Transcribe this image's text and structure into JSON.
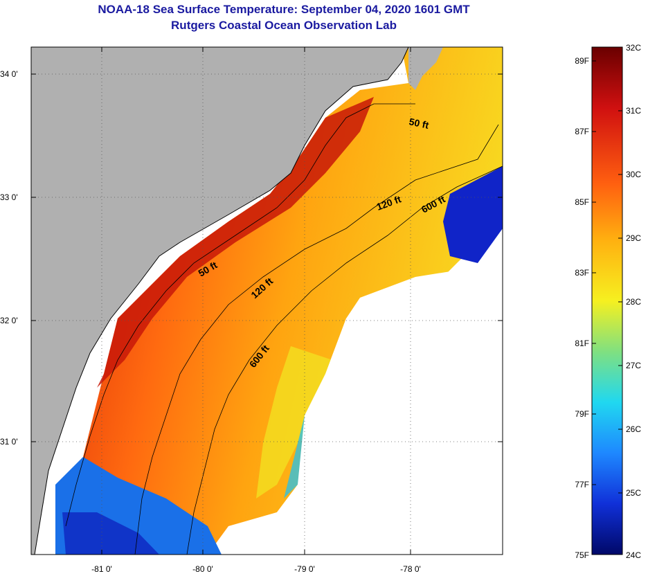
{
  "title": {
    "line1": "NOAA-18 Sea Surface Temperature:  September 04, 2020 1601 GMT",
    "line2": "Rutgers Coastal Ocean Observation Lab"
  },
  "map": {
    "lat_labels": [
      "34 0'",
      "33 0'",
      "32 0'",
      "31 0'"
    ],
    "lon_labels": [
      "-81 0'",
      "-80 0'",
      "-79 0'",
      "-78 0'"
    ],
    "contours": [
      "50 ft",
      "50 ft",
      "120 ft",
      "120 ft",
      "600 ft",
      "600 ft"
    ],
    "land_color": "#b0b0b0",
    "cloud_color": "#ffffff"
  },
  "colorbar": {
    "celsius": [
      "32C",
      "31C",
      "30C",
      "29C",
      "28C",
      "27C",
      "26C",
      "25C",
      "24C"
    ],
    "fahrenheit": [
      "89F",
      "87F",
      "85F",
      "83F",
      "81F",
      "79F",
      "77F",
      "75F"
    ],
    "colors": [
      "#7a0000",
      "#d01010",
      "#ff6a10",
      "#ffb010",
      "#f6f020",
      "#8ae070",
      "#20e0f0",
      "#1e90ff",
      "#1030d8",
      "#001070"
    ]
  }
}
